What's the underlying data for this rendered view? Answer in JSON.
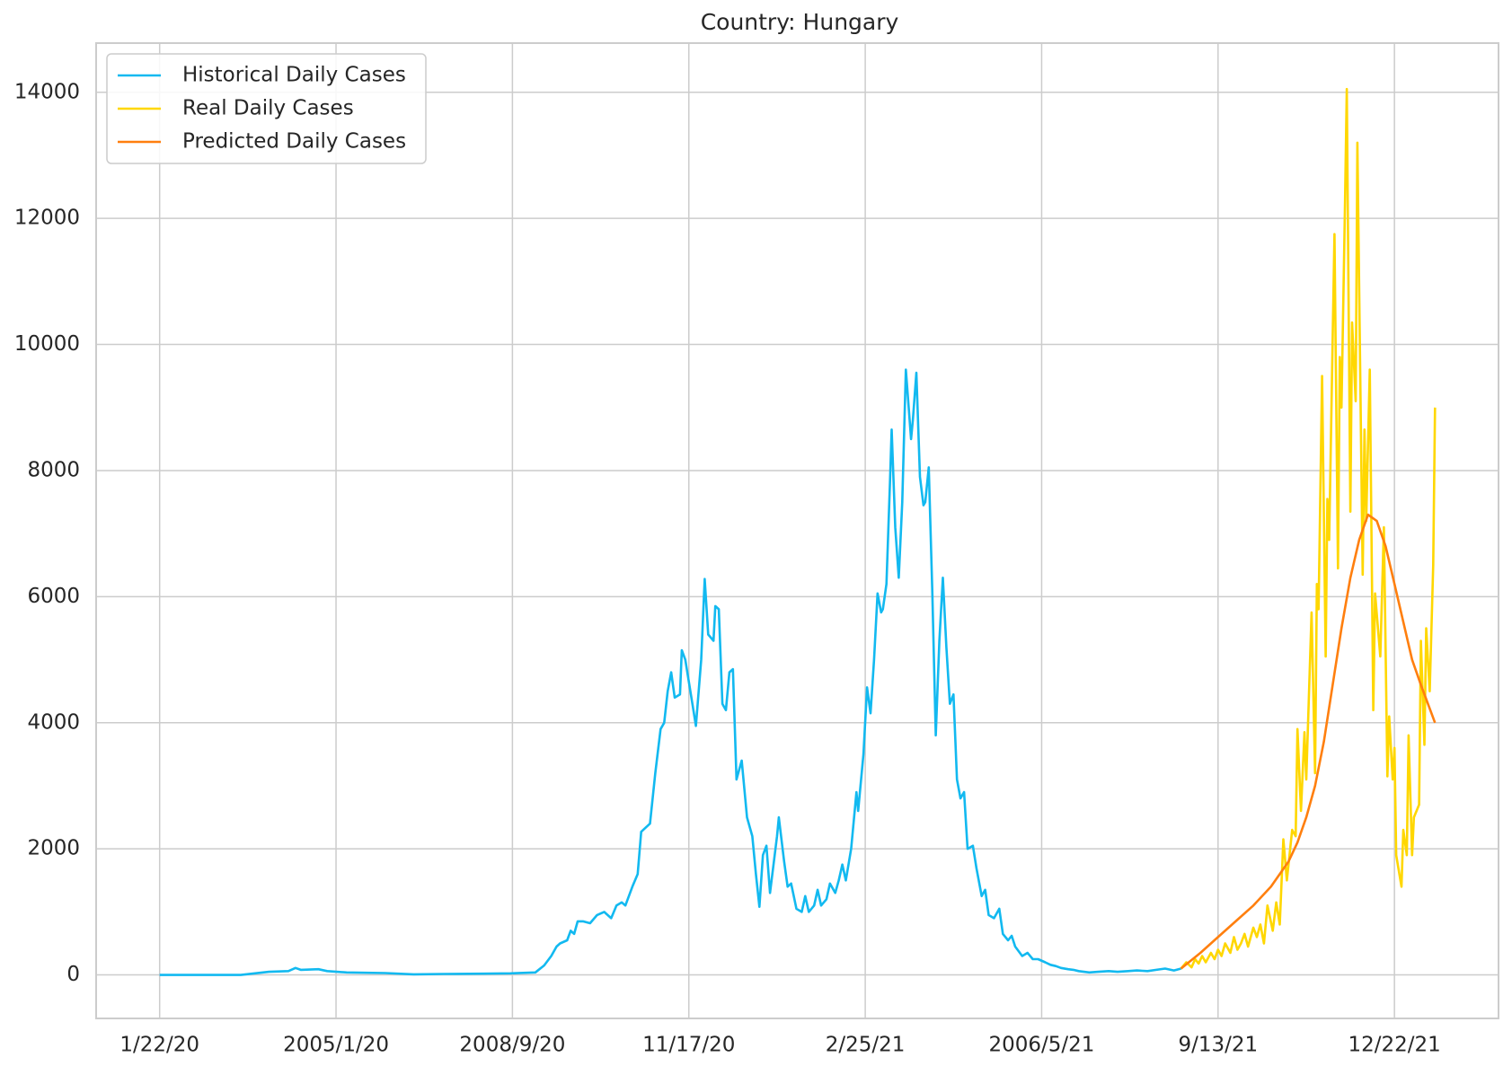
{
  "chart_data": {
    "type": "line",
    "title": "Country: Hungary",
    "xlim": [
      -36,
      759
    ],
    "ylim": [
      -690,
      14780
    ],
    "xticks": [
      {
        "value": 0,
        "label": "1/22/20"
      },
      {
        "value": 100,
        "label": "2005/1/20"
      },
      {
        "value": 200,
        "label": "2008/9/20"
      },
      {
        "value": 300,
        "label": "11/17/20"
      },
      {
        "value": 400,
        "label": "2/25/21"
      },
      {
        "value": 500,
        "label": "2006/5/21"
      },
      {
        "value": 600,
        "label": "9/13/21"
      },
      {
        "value": 700,
        "label": "12/22/21"
      }
    ],
    "yticks": [
      0,
      2000,
      4000,
      6000,
      8000,
      10000,
      12000,
      14000
    ],
    "grid": true,
    "legend": "upper left",
    "series": [
      {
        "name": "Historical Daily Cases",
        "color": "#12b9f0",
        "x": [
          0,
          46,
          62,
          73,
          77,
          80,
          90,
          95,
          106,
          128,
          144,
          161,
          183,
          199,
          213,
          218,
          222,
          225,
          227,
          231,
          233,
          235,
          237,
          240,
          244,
          248,
          252,
          256,
          259,
          262,
          264,
          268,
          271,
          273,
          278,
          281,
          284,
          286,
          288,
          290,
          292,
          295,
          296,
          298,
          302,
          304,
          307,
          309,
          311,
          314,
          315,
          317,
          319,
          321,
          323,
          325,
          327,
          330,
          333,
          336,
          338,
          340,
          342,
          344,
          346,
          350,
          351,
          354,
          356,
          358,
          361,
          364,
          366,
          368,
          371,
          373,
          375,
          378,
          380,
          383,
          385,
          387,
          389,
          392,
          395,
          396,
          399,
          401,
          403,
          405,
          407,
          409,
          410,
          412,
          414,
          415,
          417,
          419,
          421,
          423,
          426,
          427,
          429,
          431,
          433,
          434,
          436,
          438,
          440,
          442,
          444,
          446,
          448,
          450,
          452,
          454,
          456,
          458,
          461,
          463,
          466,
          468,
          470,
          473,
          476,
          478,
          481,
          483,
          485,
          489,
          492,
          495,
          498,
          502,
          505,
          508,
          511,
          515,
          518,
          521,
          527,
          532,
          538,
          543,
          549,
          554,
          560,
          565,
          570,
          575,
          579
        ],
        "values": [
          0,
          0,
          50,
          60,
          110,
          80,
          90,
          60,
          40,
          30,
          10,
          15,
          20,
          25,
          40,
          150,
          300,
          450,
          500,
          550,
          700,
          650,
          850,
          850,
          820,
          950,
          1000,
          900,
          1100,
          1150,
          1100,
          1400,
          1600,
          2270,
          2400,
          3200,
          3900,
          4000,
          4500,
          4800,
          4400,
          4450,
          5150,
          5000,
          4300,
          3950,
          5000,
          6280,
          5400,
          5300,
          5850,
          5800,
          4300,
          4200,
          4800,
          4850,
          3100,
          3400,
          2500,
          2200,
          1600,
          1080,
          1900,
          2050,
          1300,
          2200,
          2500,
          1800,
          1400,
          1450,
          1050,
          1000,
          1250,
          1000,
          1100,
          1350,
          1100,
          1200,
          1450,
          1300,
          1500,
          1750,
          1500,
          2000,
          2900,
          2600,
          3500,
          4560,
          4150,
          5000,
          6050,
          5750,
          5800,
          6200,
          7800,
          8650,
          7100,
          6300,
          7500,
          9600,
          8500,
          8800,
          9550,
          7900,
          7450,
          7500,
          8050,
          6100,
          3800,
          5300,
          6300,
          5200,
          4300,
          4450,
          3100,
          2800,
          2900,
          2000,
          2050,
          1700,
          1250,
          1350,
          950,
          900,
          1050,
          650,
          550,
          620,
          450,
          300,
          350,
          250,
          250,
          200,
          160,
          140,
          110,
          90,
          80,
          60,
          40,
          50,
          60,
          50,
          60,
          70,
          60,
          80,
          100,
          70,
          100
        ]
      },
      {
        "name": "Real Daily Cases",
        "color": "#ffd700",
        "x": [
          579,
          582,
          585,
          587,
          589,
          591,
          593,
          596,
          598,
          600,
          602,
          604,
          607,
          609,
          611,
          613,
          615,
          617,
          620,
          622,
          624,
          626,
          628,
          631,
          633,
          635,
          637,
          639,
          642,
          644,
          645,
          647,
          649,
          650,
          653,
          655,
          656,
          657,
          659,
          661,
          662,
          663,
          666,
          668,
          669,
          670,
          672,
          673,
          675,
          676,
          678,
          679,
          682,
          683,
          684,
          686,
          688,
          689,
          692,
          694,
          696,
          697,
          699,
          700,
          701,
          704,
          705,
          707,
          708,
          710,
          711,
          714,
          715,
          717,
          718,
          720,
          722,
          723
        ],
        "values": [
          100,
          200,
          120,
          250,
          180,
          300,
          200,
          350,
          250,
          400,
          300,
          500,
          350,
          600,
          400,
          500,
          650,
          450,
          750,
          600,
          800,
          500,
          1100,
          700,
          1150,
          800,
          2150,
          1500,
          2300,
          2200,
          3900,
          2600,
          3850,
          3100,
          5750,
          3200,
          6200,
          5800,
          9500,
          5050,
          7550,
          6900,
          11750,
          6450,
          9800,
          9000,
          12300,
          14050,
          7350,
          10350,
          9100,
          13200,
          6350,
          8650,
          7200,
          9600,
          4200,
          6050,
          5050,
          7100,
          3150,
          4100,
          3100,
          3600,
          1900,
          1400,
          2300,
          1900,
          3800,
          1900,
          2500,
          2700,
          5300,
          3650,
          5500,
          4500,
          6500,
          9000
        ]
      },
      {
        "name": "Predicted Daily Cases",
        "color": "#ff7f0e",
        "x": [
          579,
          590,
          600,
          610,
          620,
          630,
          640,
          645,
          650,
          655,
          660,
          665,
          670,
          675,
          680,
          685,
          690,
          695,
          700,
          705,
          710,
          715,
          723
        ],
        "values": [
          100,
          350,
          600,
          850,
          1100,
          1400,
          1800,
          2100,
          2500,
          3000,
          3700,
          4600,
          5500,
          6300,
          6900,
          7300,
          7200,
          6800,
          6200,
          5600,
          5000,
          4600,
          4000
        ]
      }
    ]
  }
}
